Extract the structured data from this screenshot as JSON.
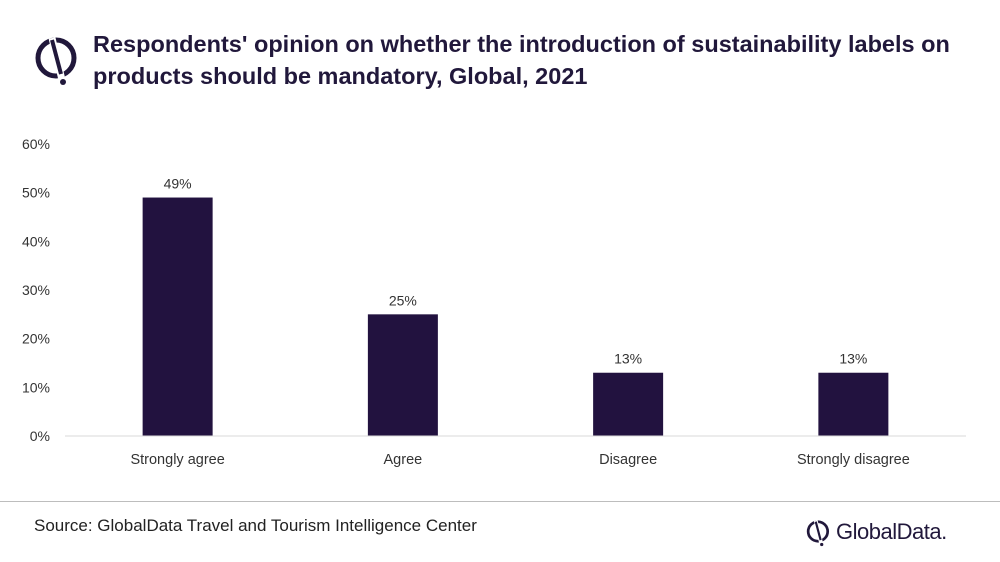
{
  "header": {
    "title": "Respondents' opinion on whether the introduction of sustainability labels on products should be mandatory, Global, 2021"
  },
  "chart_data": {
    "type": "bar",
    "categories": [
      "Strongly agree",
      "Agree",
      "Disagree",
      "Strongly disagree"
    ],
    "values": [
      49,
      25,
      13,
      13
    ],
    "data_labels": [
      "49%",
      "25%",
      "13%",
      "13%"
    ],
    "title": "Respondents' opinion on whether the introduction of sustainability labels on products should be mandatory, Global, 2021",
    "xlabel": "",
    "ylabel": "",
    "ylim": [
      0,
      60
    ],
    "yticks": [
      "0%",
      "10%",
      "20%",
      "30%",
      "40%",
      "50%",
      "60%"
    ],
    "grid": false,
    "legend": "none",
    "bar_color": "#22123f"
  },
  "footer": {
    "source": "Source: GlobalData Travel and Tourism Intelligence Center",
    "brand": "GlobalData."
  },
  "colors": {
    "title": "#21183b",
    "bar": "#22123f",
    "axis_text": "#333333"
  }
}
